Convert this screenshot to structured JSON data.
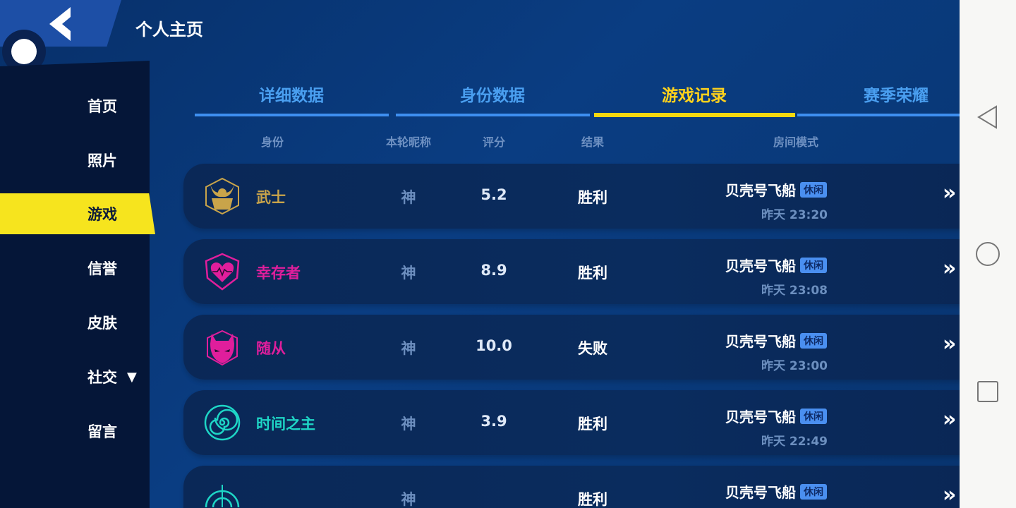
{
  "header": {
    "title": "个人主页"
  },
  "sidebar": {
    "items": [
      {
        "label": "首页"
      },
      {
        "label": "照片"
      },
      {
        "label": "游戏",
        "active": true
      },
      {
        "label": "信誉"
      },
      {
        "label": "皮肤"
      },
      {
        "label": "社交",
        "caret": "▼"
      },
      {
        "label": "留言"
      }
    ]
  },
  "tabs": [
    {
      "label": "详细数据"
    },
    {
      "label": "身份数据"
    },
    {
      "label": "游戏记录",
      "active": true
    },
    {
      "label": "赛季荣耀"
    }
  ],
  "columns": [
    "身份",
    "本轮昵称",
    "评分",
    "结果",
    "房间模式"
  ],
  "colors": {
    "accent": "#f6e41e",
    "tab": "#4a9ff0",
    "warrior": "#c9a44a",
    "survivor": "#e01e9c",
    "follower": "#e01e9c",
    "timelord": "#1ed6c6"
  },
  "rows": [
    {
      "role": "武士",
      "icon": "samurai-helmet-icon",
      "color": "#c9a44a",
      "nick": "神",
      "score": "5.2",
      "result": "胜利",
      "room": "贝壳号飞船",
      "tag": "休闲",
      "time": "昨天 23:20"
    },
    {
      "role": "幸存者",
      "icon": "heart-shield-icon",
      "color": "#e01e9c",
      "nick": "神",
      "score": "8.9",
      "result": "胜利",
      "room": "贝壳号飞船",
      "tag": "休闲",
      "time": "昨天 23:08"
    },
    {
      "role": "随从",
      "icon": "demon-mask-icon",
      "color": "#e01e9c",
      "nick": "神",
      "score": "10.0",
      "result": "失败",
      "room": "贝壳号飞船",
      "tag": "休闲",
      "time": "昨天 23:00"
    },
    {
      "role": "时间之主",
      "icon": "spiral-icon",
      "color": "#1ed6c6",
      "nick": "神",
      "score": "3.9",
      "result": "胜利",
      "room": "贝壳号飞船",
      "tag": "休闲",
      "time": "昨天 22:49"
    },
    {
      "role": "",
      "icon": "radar-icon",
      "color": "#1ed6c6",
      "nick": "神",
      "score": "",
      "result": "胜利",
      "room": "贝壳号飞船",
      "tag": "休闲",
      "time": ""
    }
  ],
  "nav": {
    "back": "back-triangle-icon",
    "home": "home-circle-icon",
    "recent": "recent-square-icon"
  }
}
